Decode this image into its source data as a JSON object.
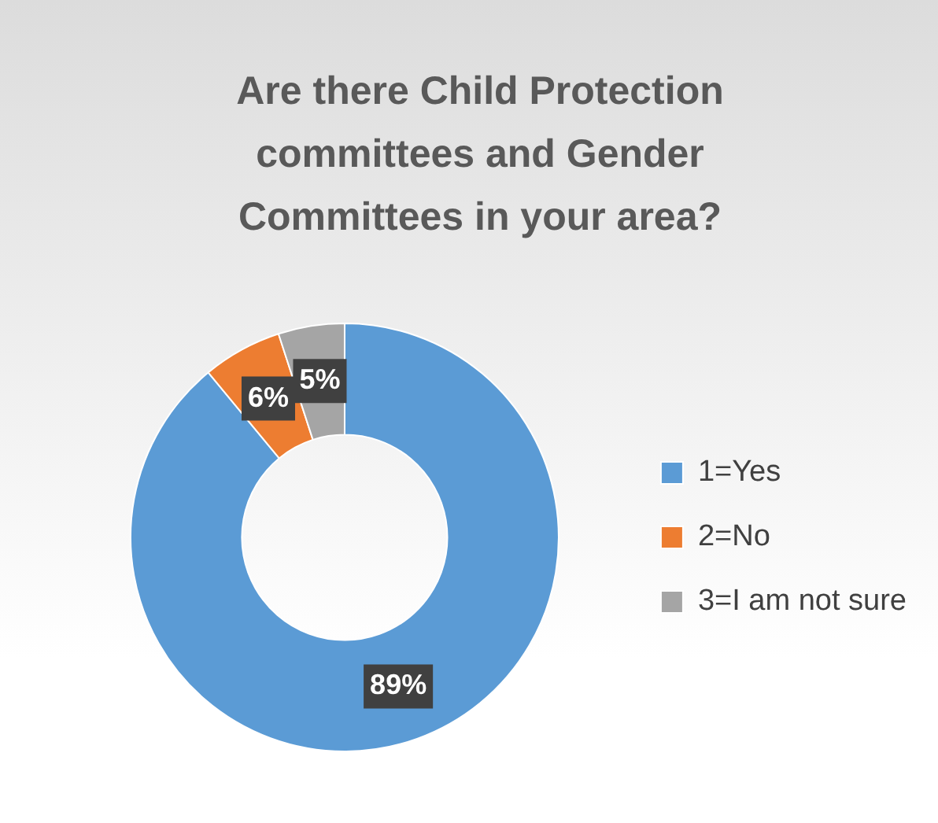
{
  "chart_data": {
    "type": "donut",
    "title": "Are there Child Protection committees and Gender Committees in your area?",
    "categories": [
      "1=Yes",
      "2=No",
      "3=I am not sure"
    ],
    "values": [
      89,
      6,
      5
    ],
    "value_labels": [
      "89%",
      "6%",
      "5%"
    ],
    "colors": [
      "#5b9bd5",
      "#ed7d31",
      "#a5a5a5"
    ],
    "legend": "right"
  }
}
